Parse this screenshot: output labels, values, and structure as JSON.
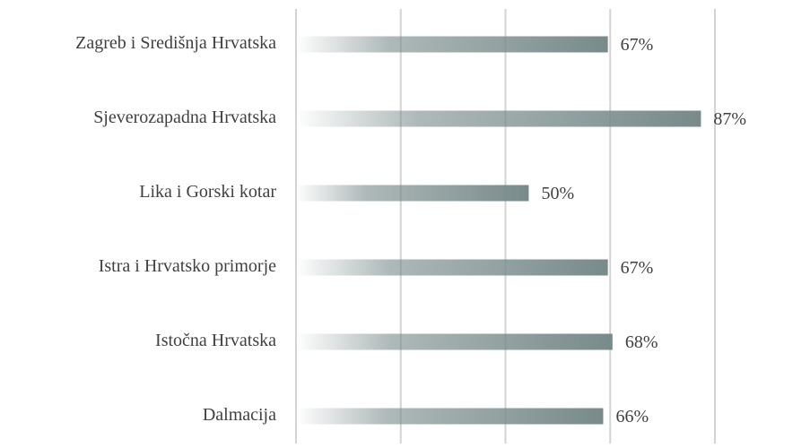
{
  "chart_data": {
    "type": "barh",
    "categories": [
      "Zagreb i Središnja Hrvatska",
      "Sjeverozapadna Hrvatska",
      "Lika i Gorski kotar",
      "Istra i Hrvatsko primorje",
      "Istočna Hrvatska",
      "Dalmacija"
    ],
    "values": [
      67,
      87,
      50,
      67,
      68,
      66
    ],
    "value_labels": [
      "67%",
      "87%",
      "50%",
      "67%",
      "68%",
      "66%"
    ],
    "color": "#788a8a",
    "xlim": [
      0,
      90
    ],
    "xticks": [
      0,
      22.5,
      45,
      67.5,
      90
    ],
    "grid": true
  }
}
